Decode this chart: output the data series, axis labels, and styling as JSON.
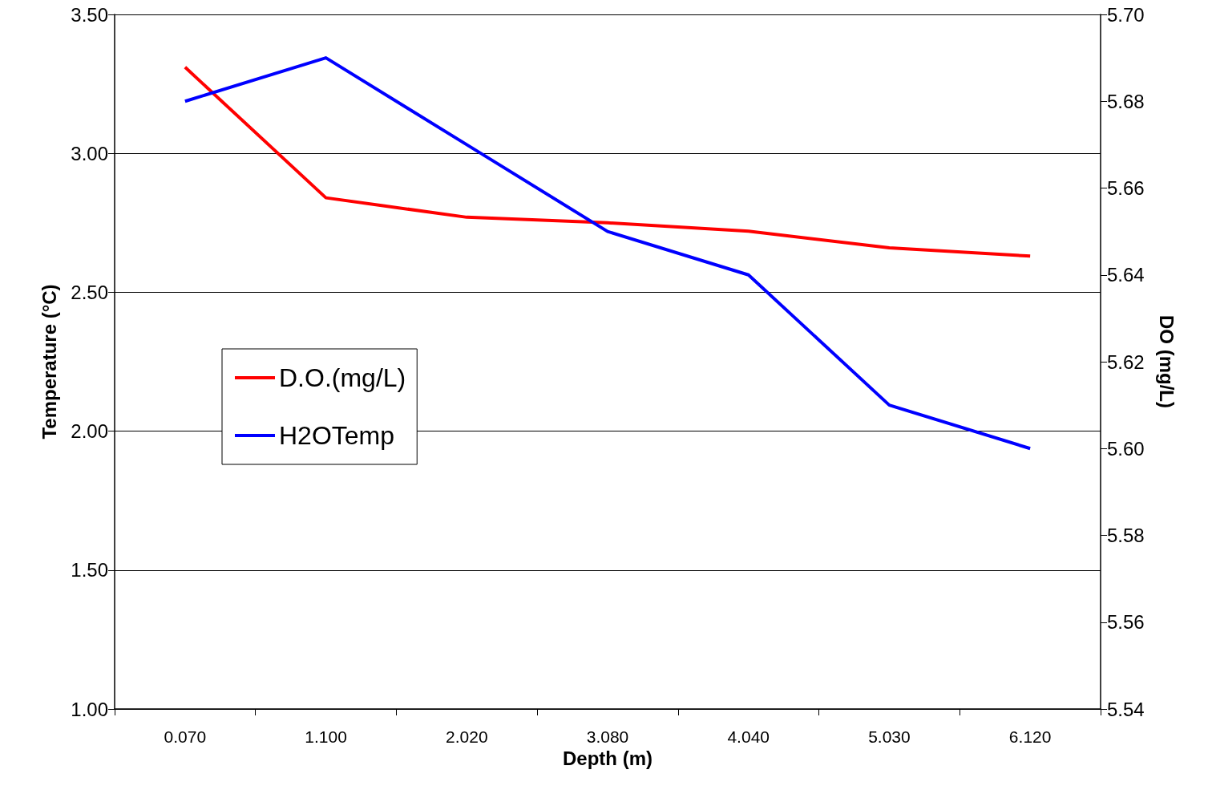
{
  "chart_data": {
    "type": "line",
    "xlabel": "Depth (m)",
    "ylabel": "Temperature (°C)",
    "y2label": "DO (mg/L)",
    "categories": [
      "0.070",
      "1.100",
      "2.020",
      "3.080",
      "4.040",
      "5.030",
      "6.120"
    ],
    "series": [
      {
        "name": "D.O.(mg/L)",
        "color": "#ff0000",
        "values": [
          3.31,
          2.84,
          2.77,
          2.75,
          2.72,
          2.66,
          2.63
        ]
      },
      {
        "name": "H2OTemp",
        "color": "#0000ff",
        "axis": "y2",
        "values": [
          5.68,
          5.69,
          5.67,
          5.65,
          5.64,
          5.61,
          5.6
        ]
      }
    ],
    "ylim": [
      1.0,
      3.5
    ],
    "yticks": [
      {
        "value": 1.0,
        "label": "1.00"
      },
      {
        "value": 1.5,
        "label": "1.50"
      },
      {
        "value": 2.0,
        "label": "2.00"
      },
      {
        "value": 2.5,
        "label": "2.50"
      },
      {
        "value": 3.0,
        "label": "3.00"
      },
      {
        "value": 3.5,
        "label": "3.50"
      }
    ],
    "y2lim": [
      5.54,
      5.7
    ],
    "y2ticks": [
      {
        "value": 5.54,
        "label": "5.54"
      },
      {
        "value": 5.56,
        "label": "5.56"
      },
      {
        "value": 5.58,
        "label": "5.58"
      },
      {
        "value": 5.6,
        "label": "5.60"
      },
      {
        "value": 5.62,
        "label": "5.62"
      },
      {
        "value": 5.64,
        "label": "5.64"
      },
      {
        "value": 5.66,
        "label": "5.66"
      },
      {
        "value": 5.68,
        "label": "5.68"
      },
      {
        "value": 5.7,
        "label": "5.70"
      }
    ],
    "grid": "y",
    "legend": "left",
    "marker": "none",
    "line_style": "solid"
  }
}
